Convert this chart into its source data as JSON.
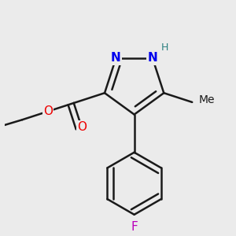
{
  "background_color": "#ebebeb",
  "bond_color": "#1a1a1a",
  "bond_width": 1.8,
  "atom_colors": {
    "N": "#0000ee",
    "H_N": "#2a8080",
    "O": "#ee0000",
    "F": "#bb00bb",
    "C": "#1a1a1a"
  },
  "font_size_atom": 11,
  "font_size_h": 9,
  "font_size_me": 10
}
